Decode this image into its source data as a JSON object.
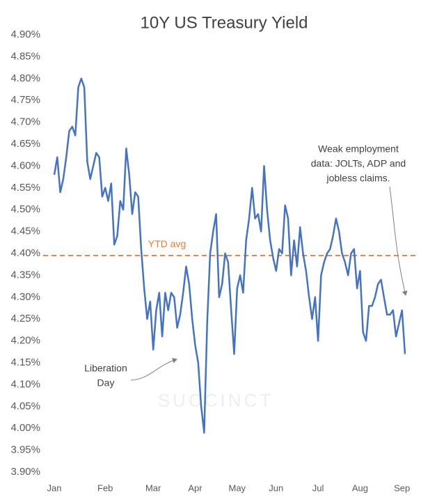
{
  "chart_data": {
    "type": "line",
    "title": "10Y US Treasury Yield",
    "categories": [
      "Jan",
      null,
      null,
      null,
      null,
      null,
      null,
      null,
      null,
      null,
      null,
      null,
      null,
      null,
      null,
      null,
      null,
      "Feb",
      null,
      null,
      null,
      null,
      null,
      null,
      null,
      null,
      null,
      null,
      null,
      null,
      null,
      null,
      null,
      "Mar",
      null,
      null,
      null,
      null,
      null,
      null,
      null,
      null,
      null,
      null,
      null,
      null,
      null,
      "Apr",
      null,
      null,
      null,
      null,
      null,
      null,
      null,
      null,
      null,
      null,
      null,
      null,
      null,
      "May",
      null,
      null,
      null,
      null,
      null,
      null,
      null,
      null,
      null,
      null,
      null,
      null,
      "Jun",
      null,
      null,
      null,
      null,
      null,
      null,
      null,
      null,
      null,
      null,
      null,
      null,
      null,
      "Jul",
      null,
      null,
      null,
      null,
      null,
      null,
      null,
      null,
      null,
      null,
      null,
      null,
      null,
      "Aug",
      null,
      null,
      null,
      null,
      null,
      null,
      null,
      null,
      null,
      null,
      null,
      null,
      null,
      "Sep",
      null
    ],
    "series": [
      {
        "name": "10Y US Treasury Yield",
        "color": "#4472c4",
        "values": [
          4.58,
          4.62,
          4.54,
          4.57,
          4.62,
          4.68,
          4.69,
          4.67,
          4.78,
          4.8,
          4.78,
          4.61,
          4.57,
          4.6,
          4.63,
          4.62,
          4.53,
          4.55,
          4.52,
          4.56,
          4.42,
          4.44,
          4.52,
          4.5,
          4.64,
          4.58,
          4.49,
          4.54,
          4.53,
          4.41,
          4.32,
          4.25,
          4.29,
          4.18,
          4.27,
          4.31,
          4.21,
          4.31,
          4.27,
          4.31,
          4.3,
          4.23,
          4.26,
          4.31,
          4.37,
          4.33,
          4.25,
          4.19,
          4.15,
          4.05,
          3.99,
          4.24,
          4.4,
          4.45,
          4.49,
          4.3,
          4.33,
          4.4,
          4.38,
          4.27,
          4.17,
          4.32,
          4.35,
          4.31,
          4.43,
          4.48,
          4.55,
          4.48,
          4.49,
          4.45,
          4.6,
          4.5,
          4.43,
          4.39,
          4.36,
          4.41,
          4.4,
          4.51,
          4.48,
          4.35,
          4.43,
          4.37,
          4.46,
          4.4,
          4.36,
          4.3,
          4.25,
          4.3,
          4.2,
          4.35,
          4.38,
          4.4,
          4.41,
          4.44,
          4.48,
          4.45,
          4.4,
          4.38,
          4.35,
          4.4,
          4.41,
          4.32,
          4.36,
          4.22,
          4.2,
          4.28,
          4.28,
          4.3,
          4.33,
          4.34,
          4.3,
          4.26,
          4.26,
          4.27,
          4.21,
          4.24,
          4.27,
          4.17
        ]
      }
    ],
    "ylim": [
      3.9,
      4.9
    ],
    "yticks": [
      {
        "value": 3.9,
        "label": "3.90%"
      },
      {
        "value": 3.95,
        "label": "3.95%"
      },
      {
        "value": 4.0,
        "label": "4.00%"
      },
      {
        "value": 4.05,
        "label": "4.05%"
      },
      {
        "value": 4.1,
        "label": "4.10%"
      },
      {
        "value": 4.15,
        "label": "4.15%"
      },
      {
        "value": 4.2,
        "label": "4.20%"
      },
      {
        "value": 4.25,
        "label": "4.25%"
      },
      {
        "value": 4.3,
        "label": "4.30%"
      },
      {
        "value": 4.35,
        "label": "4.35%"
      },
      {
        "value": 4.4,
        "label": "4.40%"
      },
      {
        "value": 4.45,
        "label": "4.45%"
      },
      {
        "value": 4.5,
        "label": "4.50%"
      },
      {
        "value": 4.55,
        "label": "4.55%"
      },
      {
        "value": 4.6,
        "label": "4.60%"
      },
      {
        "value": 4.65,
        "label": "4.65%"
      },
      {
        "value": 4.7,
        "label": "4.70%"
      },
      {
        "value": 4.75,
        "label": "4.75%"
      },
      {
        "value": 4.8,
        "label": "4.80%"
      },
      {
        "value": 4.85,
        "label": "4.85%"
      },
      {
        "value": 4.9,
        "label": "4.90%"
      }
    ],
    "grid": false,
    "reference_line": {
      "label": "YTD avg",
      "value": 4.395,
      "color": "#ed7d31"
    },
    "annotations": [
      {
        "lines": [
          "Weak employment",
          "data: JOLTs, ADP and",
          "jobless claims."
        ]
      },
      {
        "lines": [
          "Liberation",
          "Day"
        ]
      }
    ],
    "watermark": "SUCCINCT"
  }
}
